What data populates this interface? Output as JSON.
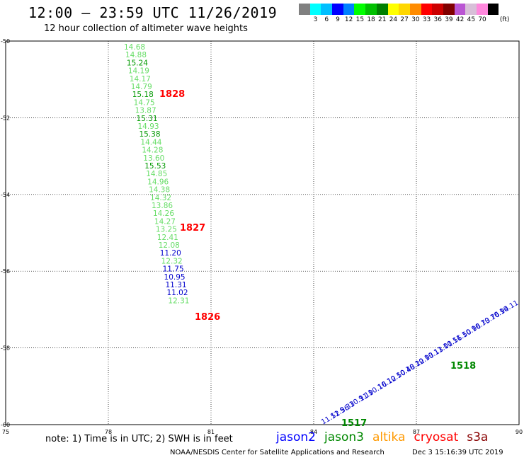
{
  "header": {
    "title": "12:00 – 23:59 UTC 11/26/2019",
    "subtitle": "12 hour collection of altimeter wave heights"
  },
  "color_legend": {
    "unit": "(ft)",
    "swatches": [
      {
        "color": "#808080",
        "label": ""
      },
      {
        "color": "#00ffff",
        "label": "3"
      },
      {
        "color": "#00bfff",
        "label": "6"
      },
      {
        "color": "#0000ff",
        "label": "9"
      },
      {
        "color": "#0080ff",
        "label": "12"
      },
      {
        "color": "#00ff00",
        "label": "15"
      },
      {
        "color": "#00c000",
        "label": "18"
      },
      {
        "color": "#008000",
        "label": "21"
      },
      {
        "color": "#ffff00",
        "label": "24"
      },
      {
        "color": "#ffd700",
        "label": "27"
      },
      {
        "color": "#ff8c00",
        "label": "30"
      },
      {
        "color": "#ff0000",
        "label": "33"
      },
      {
        "color": "#cc0000",
        "label": "36"
      },
      {
        "color": "#800000",
        "label": "39"
      },
      {
        "color": "#ba55d3",
        "label": "42"
      },
      {
        "color": "#d8bfd8",
        "label": "45"
      },
      {
        "color": "#ff88dd",
        "label": "70"
      },
      {
        "color": "#000000",
        "label": ""
      }
    ]
  },
  "map": {
    "x_ticks": [
      "75",
      "78",
      "81",
      "84",
      "87",
      "90"
    ],
    "y_ticks": [
      "-50",
      "-52",
      "-54",
      "-56",
      "-58",
      "-60"
    ],
    "tracks": [
      {
        "id": "track-1",
        "times": [
          {
            "label": "1828",
            "color": "#ff0000"
          },
          {
            "label": "1827",
            "color": "#ff0000"
          },
          {
            "label": "1826",
            "color": "#ff0000"
          }
        ],
        "points": [
          {
            "value": "14.68",
            "color": "#66dd66"
          },
          {
            "value": "14.88",
            "color": "#66dd66"
          },
          {
            "value": "15.24",
            "color": "#009900"
          },
          {
            "value": "14.19",
            "color": "#66dd66"
          },
          {
            "value": "14.17",
            "color": "#66dd66"
          },
          {
            "value": "14.79",
            "color": "#66dd66"
          },
          {
            "value": "15.18",
            "color": "#009900"
          },
          {
            "value": "14.75",
            "color": "#66dd66"
          },
          {
            "value": "13.87",
            "color": "#66dd66"
          },
          {
            "value": "15.31",
            "color": "#009900"
          },
          {
            "value": "14.93",
            "color": "#66dd66"
          },
          {
            "value": "15.38",
            "color": "#009900"
          },
          {
            "value": "14.44",
            "color": "#66dd66"
          },
          {
            "value": "14.28",
            "color": "#66dd66"
          },
          {
            "value": "13.60",
            "color": "#66dd66"
          },
          {
            "value": "15.53",
            "color": "#009900"
          },
          {
            "value": "14.85",
            "color": "#66dd66"
          },
          {
            "value": "14.96",
            "color": "#66dd66"
          },
          {
            "value": "14.38",
            "color": "#66dd66"
          },
          {
            "value": "14.32",
            "color": "#66dd66"
          },
          {
            "value": "13.86",
            "color": "#66dd66"
          },
          {
            "value": "14.26",
            "color": "#66dd66"
          },
          {
            "value": "14.27",
            "color": "#66dd66"
          },
          {
            "value": "13.25",
            "color": "#66dd66"
          },
          {
            "value": "12.41",
            "color": "#66dd66"
          },
          {
            "value": "12.08",
            "color": "#66dd66"
          },
          {
            "value": "11.20",
            "color": "#0000cc"
          },
          {
            "value": "12.32",
            "color": "#66dd66"
          },
          {
            "value": "11.75",
            "color": "#0000cc"
          },
          {
            "value": "10.95",
            "color": "#0000cc"
          },
          {
            "value": "11.31",
            "color": "#0000cc"
          },
          {
            "value": "11.02",
            "color": "#0000cc"
          },
          {
            "value": "12.31",
            "color": "#66dd66"
          }
        ]
      },
      {
        "id": "track-2",
        "times": [
          {
            "label": "1518",
            "color": "#008800"
          },
          {
            "label": "1517",
            "color": "#008800"
          }
        ],
        "points": [
          {
            "value": "11.52",
            "color": "#0000cc"
          },
          {
            "value": "11.56",
            "color": "#0000cc"
          },
          {
            "value": "9.33",
            "color": "#0000cc"
          },
          {
            "value": "10.11",
            "color": "#0000cc"
          },
          {
            "value": "9.19",
            "color": "#0000cc"
          },
          {
            "value": "10.16",
            "color": "#0000cc"
          },
          {
            "value": "10.12",
            "color": "#0000cc"
          },
          {
            "value": "10.50",
            "color": "#0000cc"
          },
          {
            "value": "10.48",
            "color": "#0000cc"
          },
          {
            "value": "10.22",
            "color": "#0000cc"
          },
          {
            "value": "10.93",
            "color": "#0000cc"
          },
          {
            "value": "10.13",
            "color": "#0000cc"
          },
          {
            "value": "11.01",
            "color": "#0000cc"
          },
          {
            "value": "10.56",
            "color": "#0000cc"
          },
          {
            "value": "11.50",
            "color": "#0000cc"
          },
          {
            "value": "10.96",
            "color": "#0000cc"
          },
          {
            "value": "10.73",
            "color": "#0000cc"
          },
          {
            "value": "10.76",
            "color": "#0000cc"
          },
          {
            "value": "10.94",
            "color": "#0000cc"
          },
          {
            "value": "10.11",
            "color": "#0000cc"
          }
        ]
      }
    ]
  },
  "footer": {
    "note": "note:  1) Time is in UTC;  2) SWH is in feet",
    "satellites": [
      {
        "name": "jason2",
        "color": "#0000ff"
      },
      {
        "name": "jason3",
        "color": "#008800"
      },
      {
        "name": "altika",
        "color": "#ff9900"
      },
      {
        "name": "cryosat",
        "color": "#ff0000"
      },
      {
        "name": "s3a",
        "color": "#880000"
      }
    ],
    "credit": "NOAA/NESDIS Center for Satellite Applications and Research",
    "timestamp": "Dec  3 15:16:39 UTC 2019"
  }
}
